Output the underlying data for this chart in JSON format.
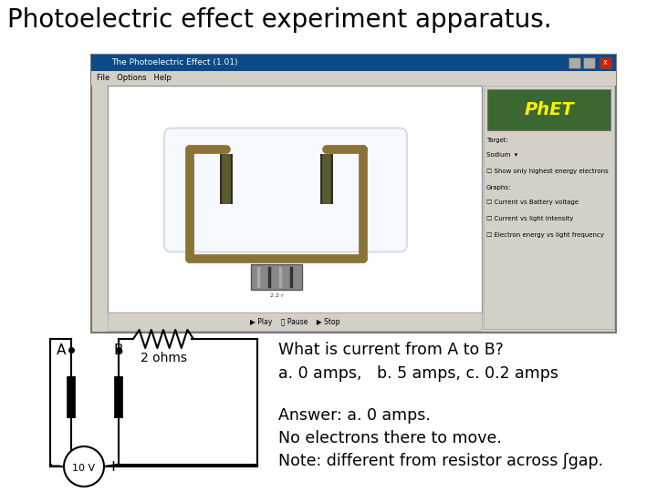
{
  "title": "Photoelectric effect experiment apparatus.",
  "title_fontsize": 20,
  "bg_color": "#ffffff",
  "question_text": "What is current from A to B?",
  "answer_choices": "a. 0 amps,   b. 5 amps, c. 0.2 amps",
  "answer_line1": "Answer: a. 0 amps.",
  "answer_line2": "No electrons there to move.",
  "answer_line3": "Note: different from resistor across ʃgap.",
  "text_fontsize": 12.5,
  "circuit_label_A": "A",
  "circuit_label_B": "B",
  "circuit_resistor": "2 ohms",
  "circuit_battery": "10 V",
  "tube_color": "#8B7336",
  "plate_color": "#333322",
  "win_title": "The Photoelectric Effect (1.01)",
  "win_menu": "File   Options   Help",
  "phet_logo": "PhET",
  "right_panel_texts": [
    "Target:",
    "Sodium  ▾",
    "Show only highest energy electrons",
    "Graphs:",
    "Current vs Battery voltage",
    "Current vs light intensity",
    "Electron energy vs light frequency"
  ],
  "playbar_text": "▶ Play    ⏸ Pause    ▶ Stop"
}
